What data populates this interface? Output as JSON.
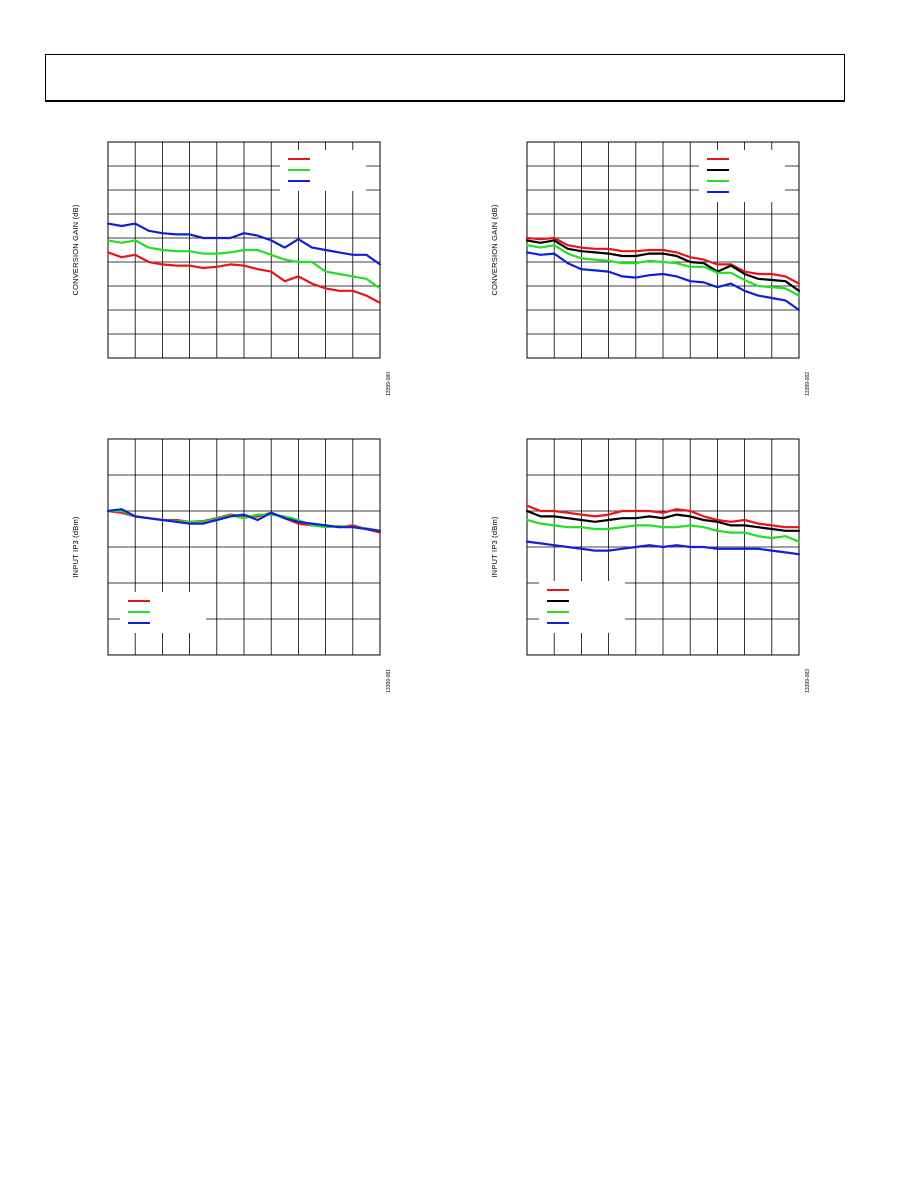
{
  "colors": {
    "red": "#e8141b",
    "green": "#22e022",
    "blue": "#1020d8",
    "black": "#000000"
  },
  "chart_data": [
    {
      "type": "line",
      "ylabel": "CONVERSION GAIN (dB)",
      "figure_id": "13399-080",
      "x": [
        0,
        0.5,
        1,
        1.5,
        2,
        2.5,
        3,
        3.5,
        4,
        4.5,
        5,
        5.5,
        6,
        6.5,
        7,
        7.5,
        8,
        8.5,
        9,
        9.5,
        10
      ],
      "ylim": [
        0,
        9
      ],
      "grid": true,
      "legend": {
        "position": "top-right",
        "entries": [
          "",
          "",
          ""
        ]
      },
      "series": [
        {
          "color": "red",
          "values": [
            4.4,
            4.2,
            4.3,
            4.0,
            3.9,
            3.85,
            3.85,
            3.75,
            3.8,
            3.9,
            3.85,
            3.7,
            3.6,
            3.2,
            3.4,
            3.1,
            2.9,
            2.8,
            2.8,
            2.6,
            2.3
          ]
        },
        {
          "color": "green",
          "values": [
            4.9,
            4.8,
            4.9,
            4.6,
            4.5,
            4.45,
            4.45,
            4.35,
            4.35,
            4.4,
            4.5,
            4.5,
            4.3,
            4.1,
            4.0,
            4.0,
            3.6,
            3.5,
            3.4,
            3.3,
            2.9
          ]
        },
        {
          "color": "blue",
          "values": [
            5.6,
            5.5,
            5.6,
            5.3,
            5.2,
            5.15,
            5.15,
            5.0,
            5.0,
            5.0,
            5.2,
            5.1,
            4.9,
            4.6,
            4.95,
            4.6,
            4.5,
            4.4,
            4.3,
            4.3,
            3.9
          ]
        }
      ]
    },
    {
      "type": "line",
      "ylabel": "CONVERSION GAIN (dB)",
      "figure_id": "13399-082",
      "x": [
        0,
        0.5,
        1,
        1.5,
        2,
        2.5,
        3,
        3.5,
        4,
        4.5,
        5,
        5.5,
        6,
        6.5,
        7,
        7.5,
        8,
        8.5,
        9,
        9.5,
        10
      ],
      "ylim": [
        0,
        9
      ],
      "grid": true,
      "legend": {
        "position": "top-right",
        "entries": [
          "",
          "",
          "",
          ""
        ]
      },
      "series": [
        {
          "color": "red",
          "values": [
            5.0,
            4.95,
            5.0,
            4.7,
            4.6,
            4.55,
            4.55,
            4.45,
            4.45,
            4.5,
            4.5,
            4.4,
            4.2,
            4.1,
            3.9,
            3.9,
            3.6,
            3.5,
            3.5,
            3.4,
            3.1
          ]
        },
        {
          "color": "black",
          "values": [
            4.9,
            4.8,
            4.9,
            4.55,
            4.45,
            4.4,
            4.35,
            4.25,
            4.25,
            4.35,
            4.35,
            4.25,
            4.0,
            3.95,
            3.6,
            3.85,
            3.5,
            3.3,
            3.25,
            3.2,
            2.8
          ]
        },
        {
          "color": "green",
          "values": [
            4.7,
            4.6,
            4.7,
            4.35,
            4.15,
            4.1,
            4.05,
            3.95,
            3.95,
            4.05,
            4.0,
            3.95,
            3.8,
            3.8,
            3.55,
            3.55,
            3.25,
            3.0,
            2.95,
            2.9,
            2.6
          ]
        },
        {
          "color": "blue",
          "values": [
            4.4,
            4.3,
            4.35,
            3.95,
            3.7,
            3.65,
            3.6,
            3.4,
            3.35,
            3.45,
            3.5,
            3.4,
            3.2,
            3.15,
            2.95,
            3.1,
            2.8,
            2.6,
            2.5,
            2.4,
            2.0
          ]
        }
      ]
    },
    {
      "type": "line",
      "ylabel": "INPUT IP3 (dBm)",
      "figure_id": "13399-081",
      "x": [
        0,
        0.5,
        1,
        1.5,
        2,
        2.5,
        3,
        3.5,
        4,
        4.5,
        5,
        5.5,
        6,
        6.5,
        7,
        7.5,
        8,
        8.5,
        9,
        9.5,
        10
      ],
      "ylim": [
        0,
        6
      ],
      "grid": true,
      "legend": {
        "position": "bottom-left",
        "entries": [
          "",
          "",
          ""
        ]
      },
      "series": [
        {
          "color": "red",
          "values": [
            4.0,
            3.95,
            3.85,
            3.8,
            3.75,
            3.75,
            3.7,
            3.72,
            3.8,
            3.9,
            3.85,
            3.85,
            3.95,
            3.8,
            3.65,
            3.6,
            3.6,
            3.55,
            3.6,
            3.5,
            3.4
          ]
        },
        {
          "color": "green",
          "values": [
            4.0,
            4.0,
            3.85,
            3.8,
            3.75,
            3.72,
            3.7,
            3.7,
            3.78,
            3.88,
            3.8,
            3.9,
            3.9,
            3.85,
            3.75,
            3.6,
            3.55,
            3.58,
            3.55,
            3.52,
            3.45
          ]
        },
        {
          "color": "blue",
          "values": [
            4.0,
            4.05,
            3.85,
            3.8,
            3.75,
            3.7,
            3.65,
            3.65,
            3.75,
            3.85,
            3.9,
            3.75,
            3.95,
            3.8,
            3.7,
            3.65,
            3.6,
            3.55,
            3.55,
            3.5,
            3.45
          ]
        }
      ]
    },
    {
      "type": "line",
      "ylabel": "INPUT IP3 (dBm)",
      "figure_id": "13399-083",
      "x": [
        0,
        0.5,
        1,
        1.5,
        2,
        2.5,
        3,
        3.5,
        4,
        4.5,
        5,
        5.5,
        6,
        6.5,
        7,
        7.5,
        8,
        8.5,
        9,
        9.5,
        10
      ],
      "ylim": [
        0,
        6
      ],
      "grid": true,
      "legend": {
        "position": "bottom-left",
        "entries": [
          "",
          "",
          "",
          ""
        ]
      },
      "series": [
        {
          "color": "red",
          "values": [
            4.15,
            4.0,
            4.0,
            3.95,
            3.9,
            3.85,
            3.9,
            4.0,
            4.0,
            4.0,
            3.95,
            4.05,
            4.0,
            3.85,
            3.75,
            3.7,
            3.75,
            3.65,
            3.6,
            3.55,
            3.55
          ]
        },
        {
          "color": "black",
          "values": [
            4.0,
            3.85,
            3.85,
            3.8,
            3.75,
            3.7,
            3.75,
            3.8,
            3.8,
            3.85,
            3.8,
            3.9,
            3.85,
            3.75,
            3.7,
            3.6,
            3.6,
            3.55,
            3.5,
            3.45,
            3.45
          ]
        },
        {
          "color": "green",
          "values": [
            3.75,
            3.65,
            3.6,
            3.55,
            3.55,
            3.5,
            3.5,
            3.55,
            3.6,
            3.6,
            3.55,
            3.55,
            3.6,
            3.55,
            3.45,
            3.4,
            3.4,
            3.3,
            3.25,
            3.3,
            3.15
          ]
        },
        {
          "color": "blue",
          "values": [
            3.15,
            3.1,
            3.05,
            3.0,
            2.95,
            2.9,
            2.9,
            2.95,
            3.0,
            3.05,
            3.0,
            3.05,
            3.0,
            3.0,
            2.95,
            2.95,
            2.95,
            2.95,
            2.9,
            2.85,
            2.8
          ]
        }
      ]
    }
  ]
}
